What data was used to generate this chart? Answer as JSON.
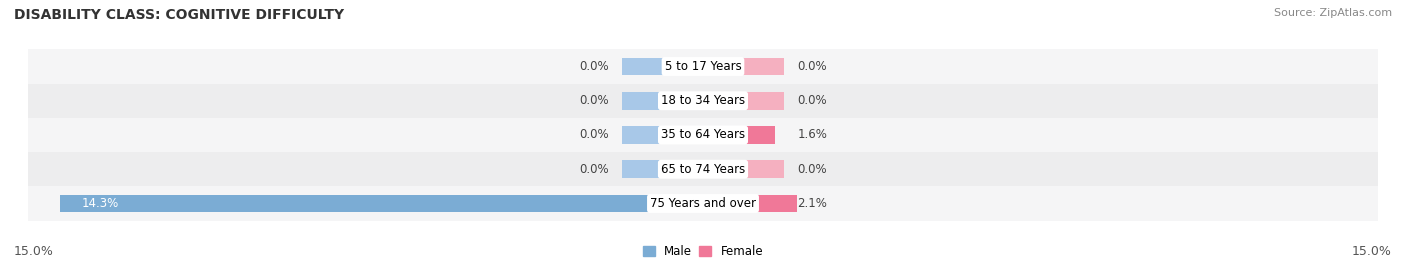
{
  "title": "DISABILITY CLASS: COGNITIVE DIFFICULTY",
  "source": "Source: ZipAtlas.com",
  "categories": [
    "5 to 17 Years",
    "18 to 34 Years",
    "35 to 64 Years",
    "65 to 74 Years",
    "75 Years and over"
  ],
  "male_values": [
    0.0,
    0.0,
    0.0,
    0.0,
    14.3
  ],
  "female_values": [
    0.0,
    0.0,
    1.6,
    0.0,
    2.1
  ],
  "max_val": 15.0,
  "male_color": "#7bacd4",
  "female_color": "#f07898",
  "male_color_zero": "#a8c8e8",
  "female_color_zero": "#f5b0c0",
  "row_bg_odd": "#ededee",
  "row_bg_even": "#f5f5f6",
  "title_fontsize": 10,
  "source_fontsize": 8,
  "label_fontsize": 8.5,
  "cat_label_fontsize": 8.5,
  "axis_label_fontsize": 9,
  "bar_height": 0.52,
  "zero_bar_width": 1.8
}
